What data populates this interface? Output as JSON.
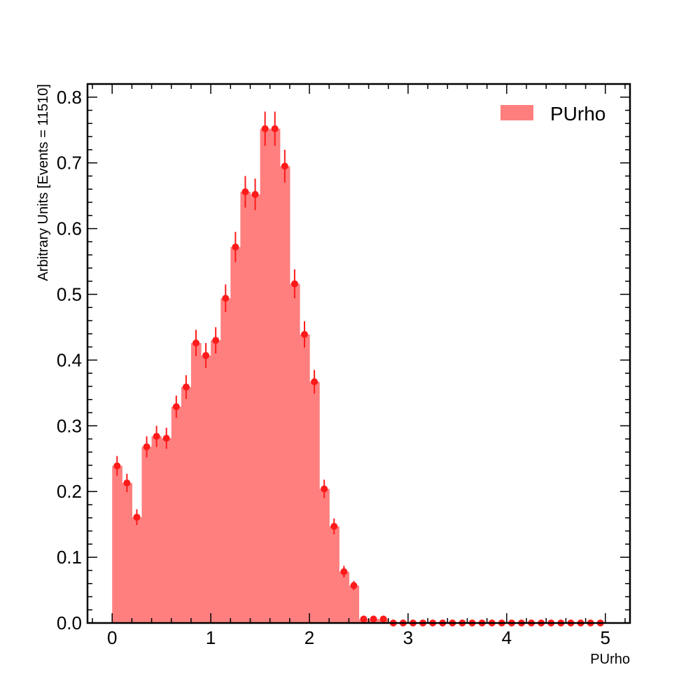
{
  "chart_data": {
    "type": "bar",
    "style": "histogram with error-bar markers",
    "xlabel": "PUrho",
    "ylabel": "Arbitrary Units [Events = 11510]",
    "xlim": [
      -0.25,
      5.25
    ],
    "ylim": [
      0,
      0.82
    ],
    "x_ticks": [
      0,
      1,
      2,
      3,
      4,
      5
    ],
    "x_tick_labels": [
      "0",
      "1",
      "2",
      "3",
      "4",
      "5"
    ],
    "y_ticks": [
      0.0,
      0.1,
      0.2,
      0.3,
      0.4,
      0.5,
      0.6,
      0.7,
      0.8
    ],
    "y_tick_labels": [
      "0.0",
      "0.1",
      "0.2",
      "0.3",
      "0.4",
      "0.5",
      "0.6",
      "0.7",
      "0.8"
    ],
    "grid": false,
    "legend": {
      "position": "top-right",
      "entries": [
        "PUrho"
      ]
    },
    "series": [
      {
        "name": "PUrho",
        "color": "#ff7f7f",
        "marker_color": "#ff1a1a",
        "bin_edges": [
          0.0,
          0.1,
          0.2,
          0.3,
          0.4,
          0.5,
          0.6,
          0.7,
          0.8,
          0.9,
          1.0,
          1.1,
          1.2,
          1.3,
          1.4,
          1.5,
          1.6,
          1.7,
          1.8,
          1.9,
          2.0,
          2.1,
          2.2,
          2.3,
          2.4,
          2.5,
          2.6,
          2.7,
          2.8,
          2.9,
          3.0,
          3.1,
          3.2,
          3.3,
          3.4,
          3.5,
          3.6,
          3.7,
          3.8,
          3.9,
          4.0,
          4.1,
          4.2,
          4.3,
          4.4,
          4.5,
          4.6,
          4.7,
          4.8,
          4.9,
          5.0
        ],
        "values": [
          0.239,
          0.213,
          0.161,
          0.268,
          0.284,
          0.281,
          0.329,
          0.359,
          0.426,
          0.407,
          0.43,
          0.494,
          0.572,
          0.656,
          0.652,
          0.752,
          0.752,
          0.695,
          0.516,
          0.439,
          0.367,
          0.204,
          0.147,
          0.078,
          0.057,
          0.006,
          0.006,
          0.006,
          0.0,
          0.0,
          0.0,
          0.0,
          0.0,
          0.0,
          0.0,
          0.0,
          0.0,
          0.0,
          0.0,
          0.0,
          0.0,
          0.0,
          0.0,
          0.0,
          0.0,
          0.0,
          0.0,
          0.0,
          0.0,
          0.0
        ],
        "errors": [
          0.015,
          0.014,
          0.012,
          0.016,
          0.016,
          0.016,
          0.017,
          0.018,
          0.02,
          0.019,
          0.02,
          0.021,
          0.023,
          0.024,
          0.024,
          0.026,
          0.026,
          0.025,
          0.022,
          0.02,
          0.018,
          0.014,
          0.012,
          0.009,
          0.007,
          0.002,
          0.002,
          0.002,
          0.0,
          0.0,
          0.0,
          0.0,
          0.0,
          0.0,
          0.0,
          0.0,
          0.0,
          0.0,
          0.0,
          0.0,
          0.0,
          0.0,
          0.0,
          0.0,
          0.0,
          0.0,
          0.0,
          0.0,
          0.0,
          0.0
        ]
      }
    ]
  }
}
